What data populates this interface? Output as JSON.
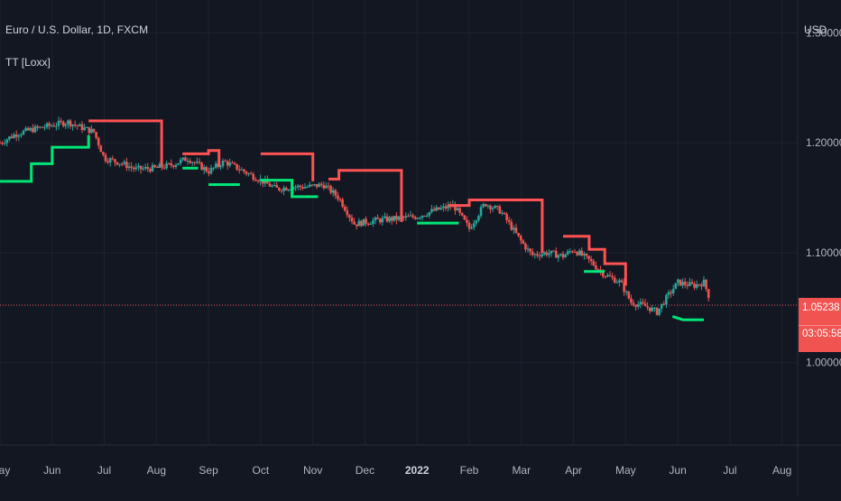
{
  "header": {
    "symbol_title": "Euro / U.S. Dollar, 1D, FXCM",
    "indicator_name": "TT [Loxx]",
    "currency": "USD"
  },
  "price_tag": {
    "price": "1.05238",
    "countdown": "03:05:58"
  },
  "colors": {
    "background": "#131722",
    "grid": "#1f2230",
    "axis_text": "#b2b5be",
    "up_candle": "#26a69a",
    "down_candle": "#ef5350",
    "line_bull": "#00e676",
    "line_bear": "#ff5252",
    "current_price_line": "#ef5350"
  },
  "chart_data": {
    "type": "line",
    "y_axis": {
      "ticks": [
        "1.30000",
        "1.20000",
        "1.10000",
        "1.00000"
      ],
      "tick_values": [
        1.3,
        1.2,
        1.1,
        1.0
      ],
      "ylim": [
        0.925,
        1.33
      ]
    },
    "x_axis": {
      "ticks": [
        "May",
        "Jun",
        "Jul",
        "Aug",
        "Sep",
        "Oct",
        "Nov",
        "Dec",
        "2022",
        "Feb",
        "Mar",
        "Apr",
        "May",
        "Jun",
        "Jul",
        "Aug"
      ],
      "emphasized": "2022",
      "xlim": [
        0,
        15.3
      ]
    },
    "last_price": 1.05238,
    "price_series": [
      [
        0,
        1.2
      ],
      [
        0.3,
        1.208
      ],
      [
        0.6,
        1.212
      ],
      [
        1.0,
        1.216
      ],
      [
        1.3,
        1.219
      ],
      [
        1.5,
        1.215
      ],
      [
        1.8,
        1.21
      ],
      [
        2.0,
        1.186
      ],
      [
        2.3,
        1.182
      ],
      [
        2.6,
        1.176
      ],
      [
        3.0,
        1.177
      ],
      [
        3.3,
        1.18
      ],
      [
        3.6,
        1.186
      ],
      [
        4.0,
        1.174
      ],
      [
        4.3,
        1.183
      ],
      [
        4.6,
        1.176
      ],
      [
        5.0,
        1.166
      ],
      [
        5.3,
        1.158
      ],
      [
        5.6,
        1.16
      ],
      [
        5.9,
        1.16
      ],
      [
        6.2,
        1.162
      ],
      [
        6.5,
        1.15
      ],
      [
        6.8,
        1.126
      ],
      [
        7.0,
        1.128
      ],
      [
        7.3,
        1.13
      ],
      [
        7.6,
        1.131
      ],
      [
        8.0,
        1.133
      ],
      [
        8.3,
        1.138
      ],
      [
        8.7,
        1.143
      ],
      [
        9.0,
        1.122
      ],
      [
        9.3,
        1.145
      ],
      [
        9.6,
        1.138
      ],
      [
        10.0,
        1.11
      ],
      [
        10.2,
        1.098
      ],
      [
        10.5,
        1.1
      ],
      [
        10.8,
        1.097
      ],
      [
        11.0,
        1.103
      ],
      [
        11.3,
        1.093
      ],
      [
        11.6,
        1.08
      ],
      [
        11.9,
        1.073
      ],
      [
        12.1,
        1.055
      ],
      [
        12.4,
        1.051
      ],
      [
        12.6,
        1.046
      ],
      [
        12.8,
        1.06
      ],
      [
        13.0,
        1.073
      ],
      [
        13.3,
        1.07
      ],
      [
        13.5,
        1.073
      ],
      [
        13.6,
        1.06
      ]
    ],
    "series": [
      {
        "role": "bullish-step",
        "segments": [
          [
            [
              0,
              1.165
            ],
            [
              0.6,
              1.165
            ],
            [
              0.6,
              1.181
            ],
            [
              1.0,
              1.181
            ],
            [
              1.0,
              1.196
            ],
            [
              1.7,
              1.196
            ],
            [
              1.7,
              1.207
            ]
          ],
          [
            [
              3.5,
              1.177
            ],
            [
              3.8,
              1.177
            ]
          ],
          [
            [
              4.0,
              1.162
            ],
            [
              4.6,
              1.162
            ]
          ],
          [
            [
              5.0,
              1.166
            ],
            [
              5.6,
              1.166
            ],
            [
              5.6,
              1.151
            ],
            [
              6.1,
              1.151
            ]
          ],
          [
            [
              8.0,
              1.127
            ],
            [
              8.8,
              1.127
            ]
          ],
          [
            [
              11.2,
              1.083
            ],
            [
              11.6,
              1.083
            ]
          ],
          [
            [
              12.9,
              1.042
            ],
            [
              13.1,
              1.039
            ],
            [
              13.5,
              1.039
            ]
          ]
        ]
      },
      {
        "role": "bearish-step",
        "segments": [
          [
            [
              1.7,
              1.22
            ],
            [
              3.1,
              1.22
            ],
            [
              3.1,
              1.18
            ]
          ],
          [
            [
              3.5,
              1.19
            ],
            [
              4.0,
              1.19
            ],
            [
              4.0,
              1.193
            ],
            [
              4.2,
              1.193
            ],
            [
              4.2,
              1.178
            ]
          ],
          [
            [
              5.0,
              1.19
            ],
            [
              6.0,
              1.19
            ],
            [
              6.0,
              1.165
            ]
          ],
          [
            [
              6.3,
              1.167
            ],
            [
              6.5,
              1.167
            ],
            [
              6.5,
              1.175
            ],
            [
              7.7,
              1.175
            ],
            [
              7.7,
              1.128
            ]
          ],
          [
            [
              8.6,
              1.143
            ],
            [
              9.0,
              1.143
            ],
            [
              9.0,
              1.148
            ],
            [
              10.4,
              1.148
            ],
            [
              10.4,
              1.1
            ]
          ],
          [
            [
              10.8,
              1.115
            ],
            [
              11.3,
              1.115
            ],
            [
              11.3,
              1.103
            ],
            [
              11.6,
              1.103
            ],
            [
              11.6,
              1.09
            ],
            [
              12.0,
              1.09
            ],
            [
              12.0,
              1.07
            ]
          ]
        ]
      }
    ]
  }
}
